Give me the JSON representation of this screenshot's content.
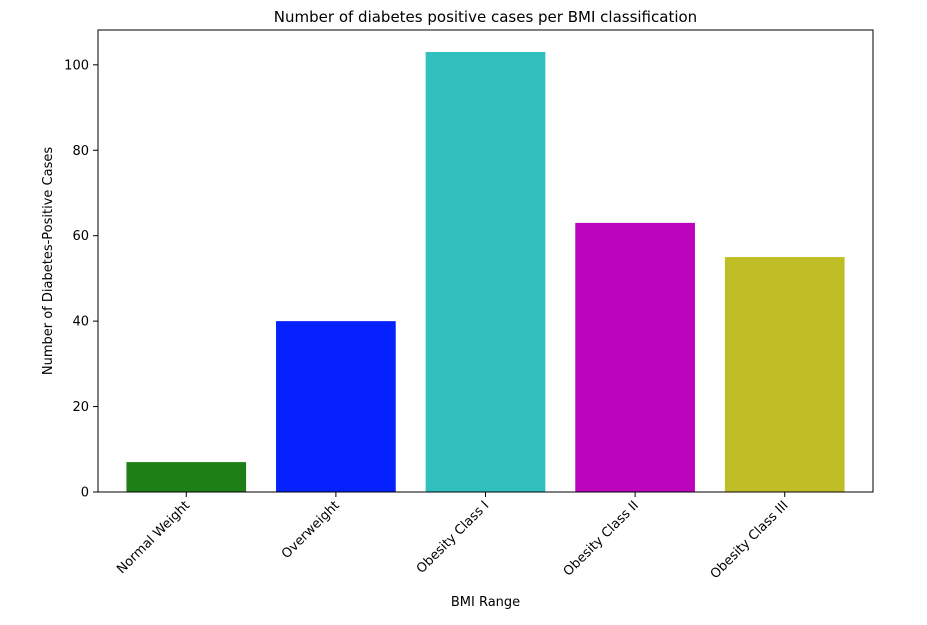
{
  "chart_data": {
    "type": "bar",
    "title": "Number of diabetes positive cases per BMI classification",
    "xlabel": "BMI Range",
    "ylabel": "Number of Diabetes-Positive Cases",
    "categories": [
      "Normal Weight",
      "Overweight",
      "Obesity Class I",
      "Obesity Class II",
      "Obesity Class III"
    ],
    "values": [
      7,
      40,
      103,
      63,
      55
    ],
    "colors": [
      "#1f7f17",
      "#0521fe",
      "#31c0be",
      "#bd04bd",
      "#c0be27"
    ],
    "ylim": [
      0,
      108.15
    ],
    "yticks": [
      0,
      20,
      40,
      60,
      80,
      100
    ],
    "ytick_labels": [
      "0",
      "20",
      "40",
      "60",
      "80",
      "100"
    ],
    "grid": false,
    "legend": false
  }
}
